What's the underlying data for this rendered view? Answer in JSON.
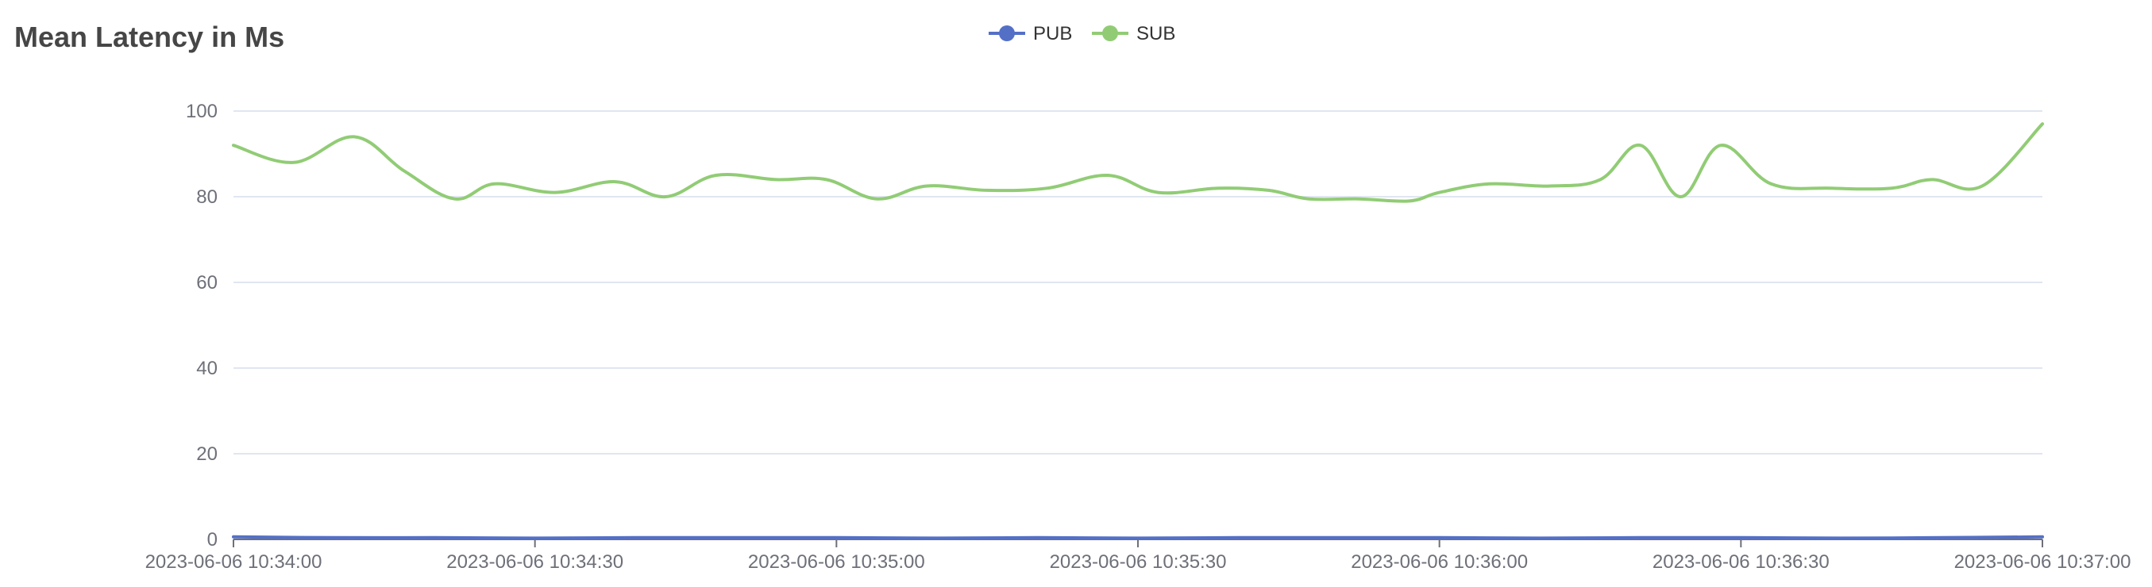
{
  "title": "Mean Latency in Ms",
  "colors": {
    "pub": "#5470c6",
    "sub": "#91cc75",
    "grid": "#e0e6f1",
    "axis": "#6e7079"
  },
  "chart_data": {
    "type": "line",
    "title": "Mean Latency in Ms",
    "xlabel": "",
    "ylabel": "",
    "ylim": [
      0,
      100
    ],
    "yticks": [
      0,
      20,
      40,
      60,
      80,
      100
    ],
    "xlim": [
      "2023-06-06 10:34:00",
      "2023-06-06 10:37:00"
    ],
    "xticks": [
      "2023-06-06 10:34:00",
      "2023-06-06 10:34:30",
      "2023-06-06 10:35:00",
      "2023-06-06 10:35:30",
      "2023-06-06 10:36:00",
      "2023-06-06 10:36:30",
      "2023-06-06 10:37:00"
    ],
    "grid": true,
    "legend": "top-center",
    "smooth": true,
    "series": [
      {
        "name": "PUB",
        "color": "#5470c6",
        "points": [
          [
            "2023-06-06 10:34:00",
            0.6
          ],
          [
            "2023-06-06 10:34:10",
            0.4
          ],
          [
            "2023-06-06 10:34:20",
            0.4
          ],
          [
            "2023-06-06 10:34:30",
            0.3
          ],
          [
            "2023-06-06 10:34:40",
            0.4
          ],
          [
            "2023-06-06 10:34:50",
            0.4
          ],
          [
            "2023-06-06 10:35:00",
            0.4
          ],
          [
            "2023-06-06 10:35:10",
            0.3
          ],
          [
            "2023-06-06 10:35:20",
            0.4
          ],
          [
            "2023-06-06 10:35:30",
            0.3
          ],
          [
            "2023-06-06 10:35:40",
            0.4
          ],
          [
            "2023-06-06 10:35:50",
            0.4
          ],
          [
            "2023-06-06 10:36:00",
            0.4
          ],
          [
            "2023-06-06 10:36:10",
            0.3
          ],
          [
            "2023-06-06 10:36:20",
            0.4
          ],
          [
            "2023-06-06 10:36:30",
            0.4
          ],
          [
            "2023-06-06 10:36:40",
            0.3
          ],
          [
            "2023-06-06 10:36:50",
            0.4
          ],
          [
            "2023-06-06 10:37:00",
            0.6
          ]
        ]
      },
      {
        "name": "SUB",
        "color": "#91cc75",
        "points": [
          [
            "2023-06-06 10:34:00",
            92
          ],
          [
            "2023-06-06 10:34:06",
            88
          ],
          [
            "2023-06-06 10:34:12",
            94
          ],
          [
            "2023-06-06 10:34:17",
            86
          ],
          [
            "2023-06-06 10:34:22",
            79.5
          ],
          [
            "2023-06-06 10:34:26",
            83
          ],
          [
            "2023-06-06 10:34:32",
            81
          ],
          [
            "2023-06-06 10:34:38",
            83.5
          ],
          [
            "2023-06-06 10:34:43",
            80
          ],
          [
            "2023-06-06 10:34:48",
            85
          ],
          [
            "2023-06-06 10:34:54",
            84
          ],
          [
            "2023-06-06 10:34:59",
            84
          ],
          [
            "2023-06-06 10:35:04",
            79.5
          ],
          [
            "2023-06-06 10:35:09",
            82.5
          ],
          [
            "2023-06-06 10:35:15",
            81.5
          ],
          [
            "2023-06-06 10:35:21",
            82
          ],
          [
            "2023-06-06 10:35:27",
            85
          ],
          [
            "2023-06-06 10:35:32",
            81
          ],
          [
            "2023-06-06 10:35:38",
            82
          ],
          [
            "2023-06-06 10:35:43",
            81.5
          ],
          [
            "2023-06-06 10:35:47",
            79.5
          ],
          [
            "2023-06-06 10:35:52",
            79.5
          ],
          [
            "2023-06-06 10:35:57",
            79
          ],
          [
            "2023-06-06 10:36:00",
            81
          ],
          [
            "2023-06-06 10:36:05",
            83
          ],
          [
            "2023-06-06 10:36:11",
            82.5
          ],
          [
            "2023-06-06 10:36:16",
            84
          ],
          [
            "2023-06-06 10:36:20",
            92
          ],
          [
            "2023-06-06 10:36:24",
            80
          ],
          [
            "2023-06-06 10:36:28",
            92
          ],
          [
            "2023-06-06 10:36:33",
            83
          ],
          [
            "2023-06-06 10:36:39",
            82
          ],
          [
            "2023-06-06 10:36:45",
            82
          ],
          [
            "2023-06-06 10:36:49",
            84
          ],
          [
            "2023-06-06 10:36:54",
            82.5
          ],
          [
            "2023-06-06 10:37:00",
            97
          ]
        ]
      }
    ]
  }
}
